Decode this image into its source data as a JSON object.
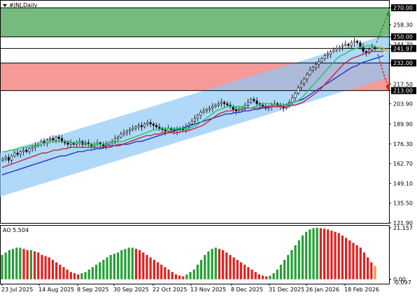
{
  "title": "#JNJ,Daily",
  "chart_data": {
    "type": "candlestick",
    "symbol": "#JNJ",
    "timeframe": "Daily",
    "y_ticks": [
      "270.00",
      "258.30",
      "250.00",
      "244.70",
      "241.97",
      "232.00",
      "217.50",
      "213.00",
      "203.90",
      "189.90",
      "176.30",
      "162.70",
      "149.10",
      "135.50",
      "121.90"
    ],
    "y_tick_values": [
      270.0,
      258.3,
      250.0,
      244.7,
      241.97,
      232.0,
      217.5,
      213.0,
      203.9,
      189.9,
      176.3,
      162.7,
      149.1,
      135.5,
      121.9
    ],
    "highlighted_levels": [
      {
        "label": "270.00",
        "value": 270.0,
        "style": "black"
      },
      {
        "label": "250.00",
        "value": 250.0,
        "style": "black"
      },
      {
        "label": "241.97",
        "value": 241.97,
        "style": "black"
      },
      {
        "label": "232.00",
        "value": 232.0,
        "style": "black"
      },
      {
        "label": "213.00",
        "value": 213.0,
        "style": "black"
      }
    ],
    "x_ticks": [
      "23 Jul 2025",
      "14 Aug 2025",
      "8 Sep 2025",
      "30 Sep 2025",
      "22 Oct 2025",
      "13 Nov 2025",
      "8 Dec 2025",
      "31 Dec 2025",
      "26 Jan 2026",
      "18 Feb 2026"
    ],
    "zones": [
      {
        "kind": "resistance",
        "from": 250.0,
        "to": 270.0,
        "color": "#5fae66"
      },
      {
        "kind": "support",
        "from": 213.0,
        "to": 232.0,
        "color": "#f28080"
      }
    ],
    "channel": {
      "color": "#8ec8f5",
      "start_lower": 140.0,
      "start_upper": 170.0,
      "end_lower": 222.0,
      "end_upper": 252.0
    },
    "closes": [
      166,
      167,
      165,
      168,
      170,
      169,
      171,
      172,
      171,
      173,
      174,
      175,
      176,
      178,
      177,
      179,
      180,
      179,
      181,
      180,
      178,
      177,
      176,
      177,
      176,
      177,
      178,
      176,
      177,
      176,
      175,
      176,
      177,
      176,
      175,
      176,
      177,
      178,
      180,
      181,
      183,
      184,
      185,
      186,
      187,
      188,
      189,
      188,
      190,
      191,
      190,
      189,
      188,
      187,
      186,
      185,
      187,
      186,
      185,
      186,
      187,
      186,
      188,
      190,
      192,
      194,
      196,
      198,
      199,
      200,
      201,
      202,
      203,
      204,
      205,
      204,
      203,
      202,
      200,
      199,
      200,
      201,
      203,
      205,
      207,
      206,
      204,
      203,
      202,
      201,
      202,
      203,
      204,
      203,
      202,
      201,
      203,
      205,
      208,
      211,
      215,
      218,
      221,
      224,
      227,
      229,
      231,
      233,
      235,
      237,
      238,
      240,
      241,
      242,
      243,
      244,
      245,
      244,
      246,
      247,
      246,
      243,
      240,
      239,
      241,
      243,
      242
    ],
    "ma_fast": {
      "color": "#22c55e",
      "values": [
        171,
        171,
        172,
        172,
        173,
        174,
        174,
        175,
        175,
        176,
        176,
        177,
        177,
        178,
        178,
        178,
        178,
        178,
        177,
        177,
        177,
        177,
        176,
        176,
        176,
        176,
        176,
        177,
        177,
        177,
        178,
        178,
        179,
        180,
        181,
        182,
        183,
        184,
        185,
        186,
        186,
        187,
        187,
        187,
        187,
        187,
        187,
        187,
        187,
        188,
        189,
        191,
        193,
        195,
        197,
        199,
        200,
        201,
        202,
        202,
        202,
        202,
        202,
        201,
        201,
        202,
        203,
        204,
        204,
        204,
        203,
        203,
        203,
        203,
        204,
        205,
        206,
        208,
        211,
        214,
        217,
        220,
        223,
        226,
        229,
        232,
        235,
        237,
        238,
        240,
        241,
        242,
        243,
        243,
        244,
        244,
        243,
        242,
        241
      ]
    },
    "ma_mid": {
      "color": "#c0283c",
      "values": [
        160,
        161,
        162,
        163,
        164,
        165,
        166,
        167,
        168,
        169,
        170,
        170,
        171,
        172,
        172,
        173,
        173,
        174,
        174,
        174,
        174,
        174,
        174,
        174,
        174,
        174,
        175,
        175,
        175,
        176,
        176,
        177,
        178,
        179,
        180,
        181,
        182,
        182,
        183,
        183,
        184,
        184,
        184,
        184,
        184,
        185,
        185,
        186,
        187,
        188,
        189,
        191,
        193,
        195,
        197,
        198,
        199,
        199,
        200,
        200,
        200,
        201,
        201,
        201,
        201,
        202,
        202,
        202,
        202,
        202,
        202,
        202,
        203,
        203,
        204,
        205,
        207,
        209,
        211,
        213,
        216,
        219,
        222,
        225,
        228,
        231,
        233,
        235,
        236,
        237,
        238,
        239,
        240,
        240,
        240,
        240
      ]
    },
    "ma_slow": {
      "color": "#2830c8",
      "values": [
        155,
        156,
        157,
        158,
        159,
        160,
        161,
        162,
        163,
        164,
        165,
        166,
        167,
        168,
        168,
        169,
        170,
        171,
        171,
        172,
        172,
        173,
        173,
        174,
        174,
        175,
        175,
        176,
        176,
        177,
        178,
        178,
        179,
        180,
        181,
        182,
        183,
        184,
        185,
        186,
        187,
        188,
        189,
        190,
        191,
        192,
        193,
        194,
        195,
        196,
        197,
        197,
        198,
        198,
        199,
        199,
        200,
        200,
        201,
        201,
        202,
        202,
        203,
        203,
        204,
        205,
        206,
        207,
        209,
        211,
        213,
        215,
        217,
        219,
        221,
        223,
        225,
        227,
        229,
        230,
        232,
        233,
        234,
        235,
        236,
        237
      ]
    },
    "ao": {
      "label": "AO 5.504",
      "y_ticks": [
        "21.157",
        "0.00",
        "-0.097"
      ],
      "y_tick_values": [
        21.157,
        0.0,
        -0.097
      ],
      "values": [
        10,
        11,
        12,
        12.5,
        13,
        13,
        12.5,
        12,
        12,
        11.5,
        11,
        10,
        9.5,
        9,
        8,
        7,
        6,
        5,
        4,
        3,
        2.5,
        2,
        2.5,
        3,
        4,
        5,
        6,
        7,
        8,
        9,
        10,
        10.5,
        11,
        12,
        12.5,
        13,
        13,
        12.5,
        12,
        11,
        10,
        9,
        8,
        7,
        6,
        5,
        4,
        3,
        2,
        1.5,
        1.2,
        2,
        3,
        4,
        6,
        8,
        10,
        11.5,
        12.5,
        13,
        12.5,
        12,
        11,
        10,
        9,
        8,
        7,
        6,
        5,
        4,
        3,
        2,
        1.5,
        1.2,
        1.5,
        2.5,
        4,
        6,
        8,
        10,
        12,
        14,
        16,
        18,
        19.5,
        20.5,
        21,
        21.157,
        21,
        20.8,
        20.5,
        20,
        19.5,
        19,
        18,
        17,
        16,
        15,
        14,
        13,
        11,
        9,
        7,
        5.504
      ]
    },
    "forecast_arrows": [
      {
        "kind": "bullish",
        "color": "#2a8a3a"
      },
      {
        "kind": "bearish",
        "color": "#e02020"
      }
    ]
  }
}
